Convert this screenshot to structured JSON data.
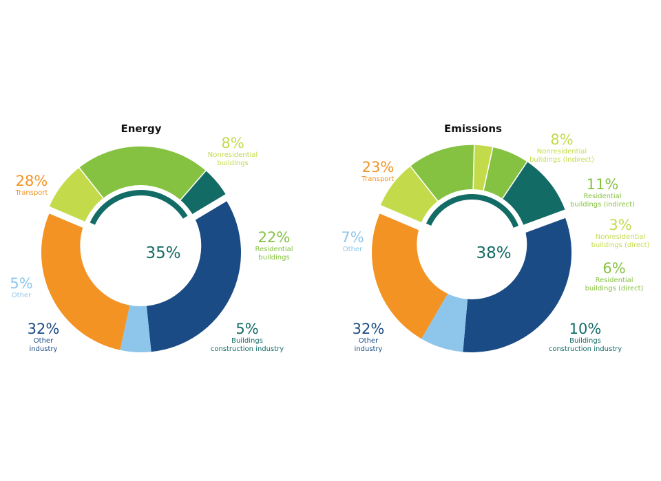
{
  "colors": {
    "transport": "#f39324",
    "other": "#8ec6eb",
    "other_industry": "#1a4b85",
    "buildings_construction": "#136b66",
    "residential": "#86c241",
    "nonresidential": "#c3db4b",
    "inner_arc": "#136b66"
  },
  "chart_data": [
    {
      "type": "pie",
      "title": "Energy",
      "center_label": "35%",
      "slices": [
        {
          "key": "nonres",
          "pct": "8%",
          "label": [
            "Nonresidential",
            "buildings"
          ],
          "value": 8,
          "color_key": "nonresidential",
          "exploded": true
        },
        {
          "key": "res",
          "pct": "22%",
          "label": [
            "Residential",
            "buildings"
          ],
          "value": 22,
          "color_key": "residential",
          "exploded": true
        },
        {
          "key": "bci",
          "pct": "5%",
          "label": [
            "Buildings",
            "construction industry"
          ],
          "value": 5,
          "color_key": "buildings_construction",
          "exploded": true
        },
        {
          "key": "oind",
          "pct": "32%",
          "label": [
            "Other",
            "industry"
          ],
          "value": 32,
          "color_key": "other_industry",
          "exploded": false
        },
        {
          "key": "oth",
          "pct": "5%",
          "label": [
            "Other"
          ],
          "value": 5,
          "color_key": "other",
          "exploded": false
        },
        {
          "key": "trn",
          "pct": "28%",
          "label": [
            "Transport"
          ],
          "value": 28,
          "color_key": "transport",
          "exploded": false
        }
      ]
    },
    {
      "type": "pie",
      "title": "Emissions",
      "center_label": "38%",
      "slices": [
        {
          "key": "nonres_ind",
          "pct": "8%",
          "label": [
            "Nonresidential",
            "buildings (indirect)"
          ],
          "value": 8,
          "color_key": "nonresidential",
          "exploded": true
        },
        {
          "key": "res_ind",
          "pct": "11%",
          "label": [
            "Residential",
            "buildings (indirect)"
          ],
          "value": 11,
          "color_key": "residential",
          "exploded": true
        },
        {
          "key": "nonres_dir",
          "pct": "3%",
          "label": [
            "Nonresidential",
            "buildings (direct)"
          ],
          "value": 3,
          "color_key": "nonresidential",
          "exploded": true
        },
        {
          "key": "res_dir",
          "pct": "6%",
          "label": [
            "Residential",
            "buildings (direct)"
          ],
          "value": 6,
          "color_key": "residential",
          "exploded": true
        },
        {
          "key": "bci",
          "pct": "10%",
          "label": [
            "Buildings",
            "construction industry"
          ],
          "value": 10,
          "color_key": "buildings_construction",
          "exploded": true
        },
        {
          "key": "oind",
          "pct": "32%",
          "label": [
            "Other",
            "industry"
          ],
          "value": 32,
          "color_key": "other_industry",
          "exploded": false
        },
        {
          "key": "oth",
          "pct": "7%",
          "label": [
            "Other"
          ],
          "value": 7,
          "color_key": "other",
          "exploded": false
        },
        {
          "key": "trn",
          "pct": "23%",
          "label": [
            "Transport"
          ],
          "value": 23,
          "color_key": "transport",
          "exploded": false
        }
      ]
    }
  ]
}
